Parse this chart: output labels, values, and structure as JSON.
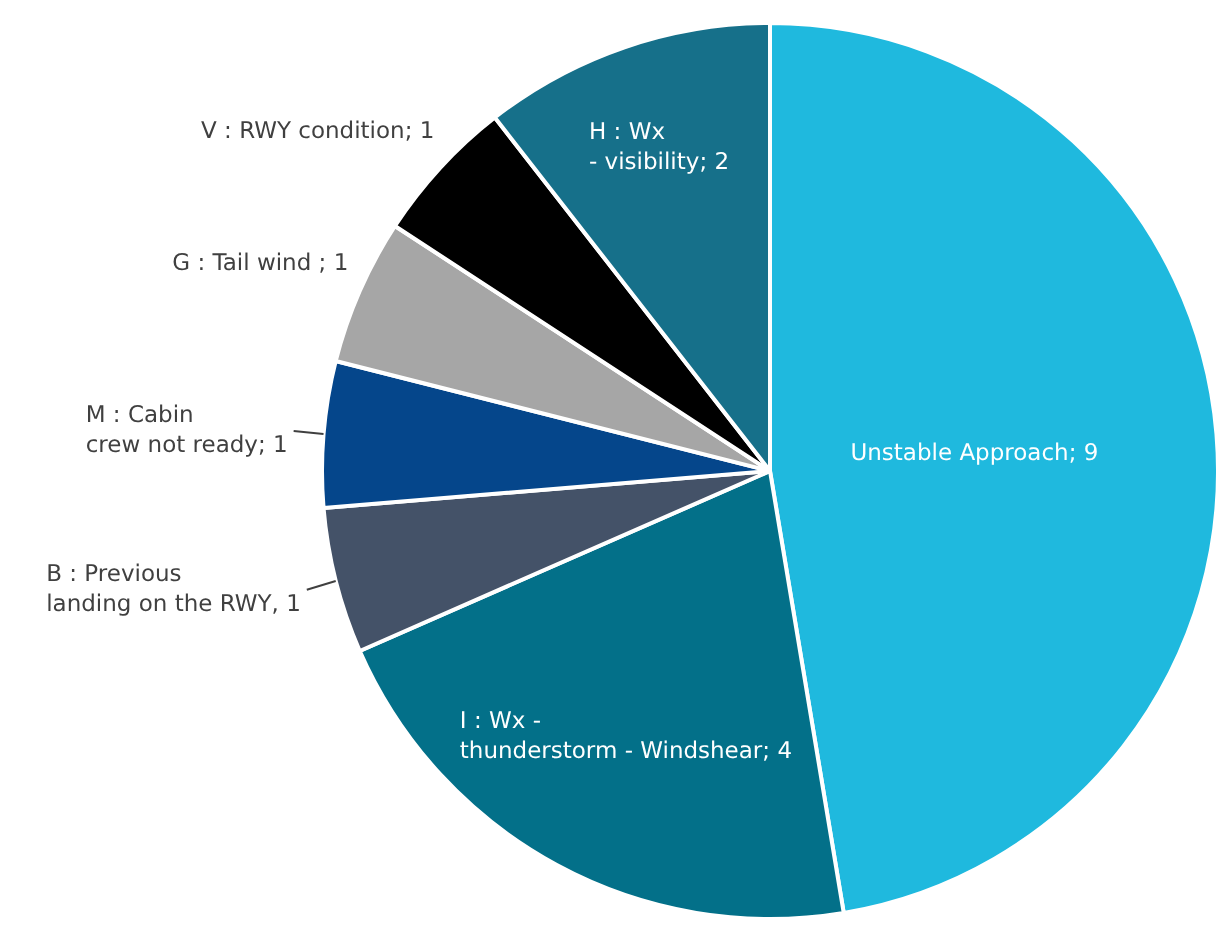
{
  "chart_data": {
    "type": "pie",
    "categories": [
      "Unstable Approach",
      "I : Wx - thunderstorm - Windshear",
      "B : Previous landing on the RWY",
      "M : Cabin crew not ready",
      "G : Tail wind",
      "V : RWY condition",
      "H : Wx - visibility"
    ],
    "values": [
      9,
      4,
      1,
      1,
      1,
      1,
      2
    ],
    "colors": [
      "#1fb9de",
      "#037089",
      "#445268",
      "#05468b",
      "#a6a6a6",
      "#000000",
      "#16708a"
    ],
    "value_labels": [
      "; 9",
      "; 4",
      ", 1",
      "; 1",
      " ; 1",
      "; 1",
      "; 2"
    ]
  }
}
